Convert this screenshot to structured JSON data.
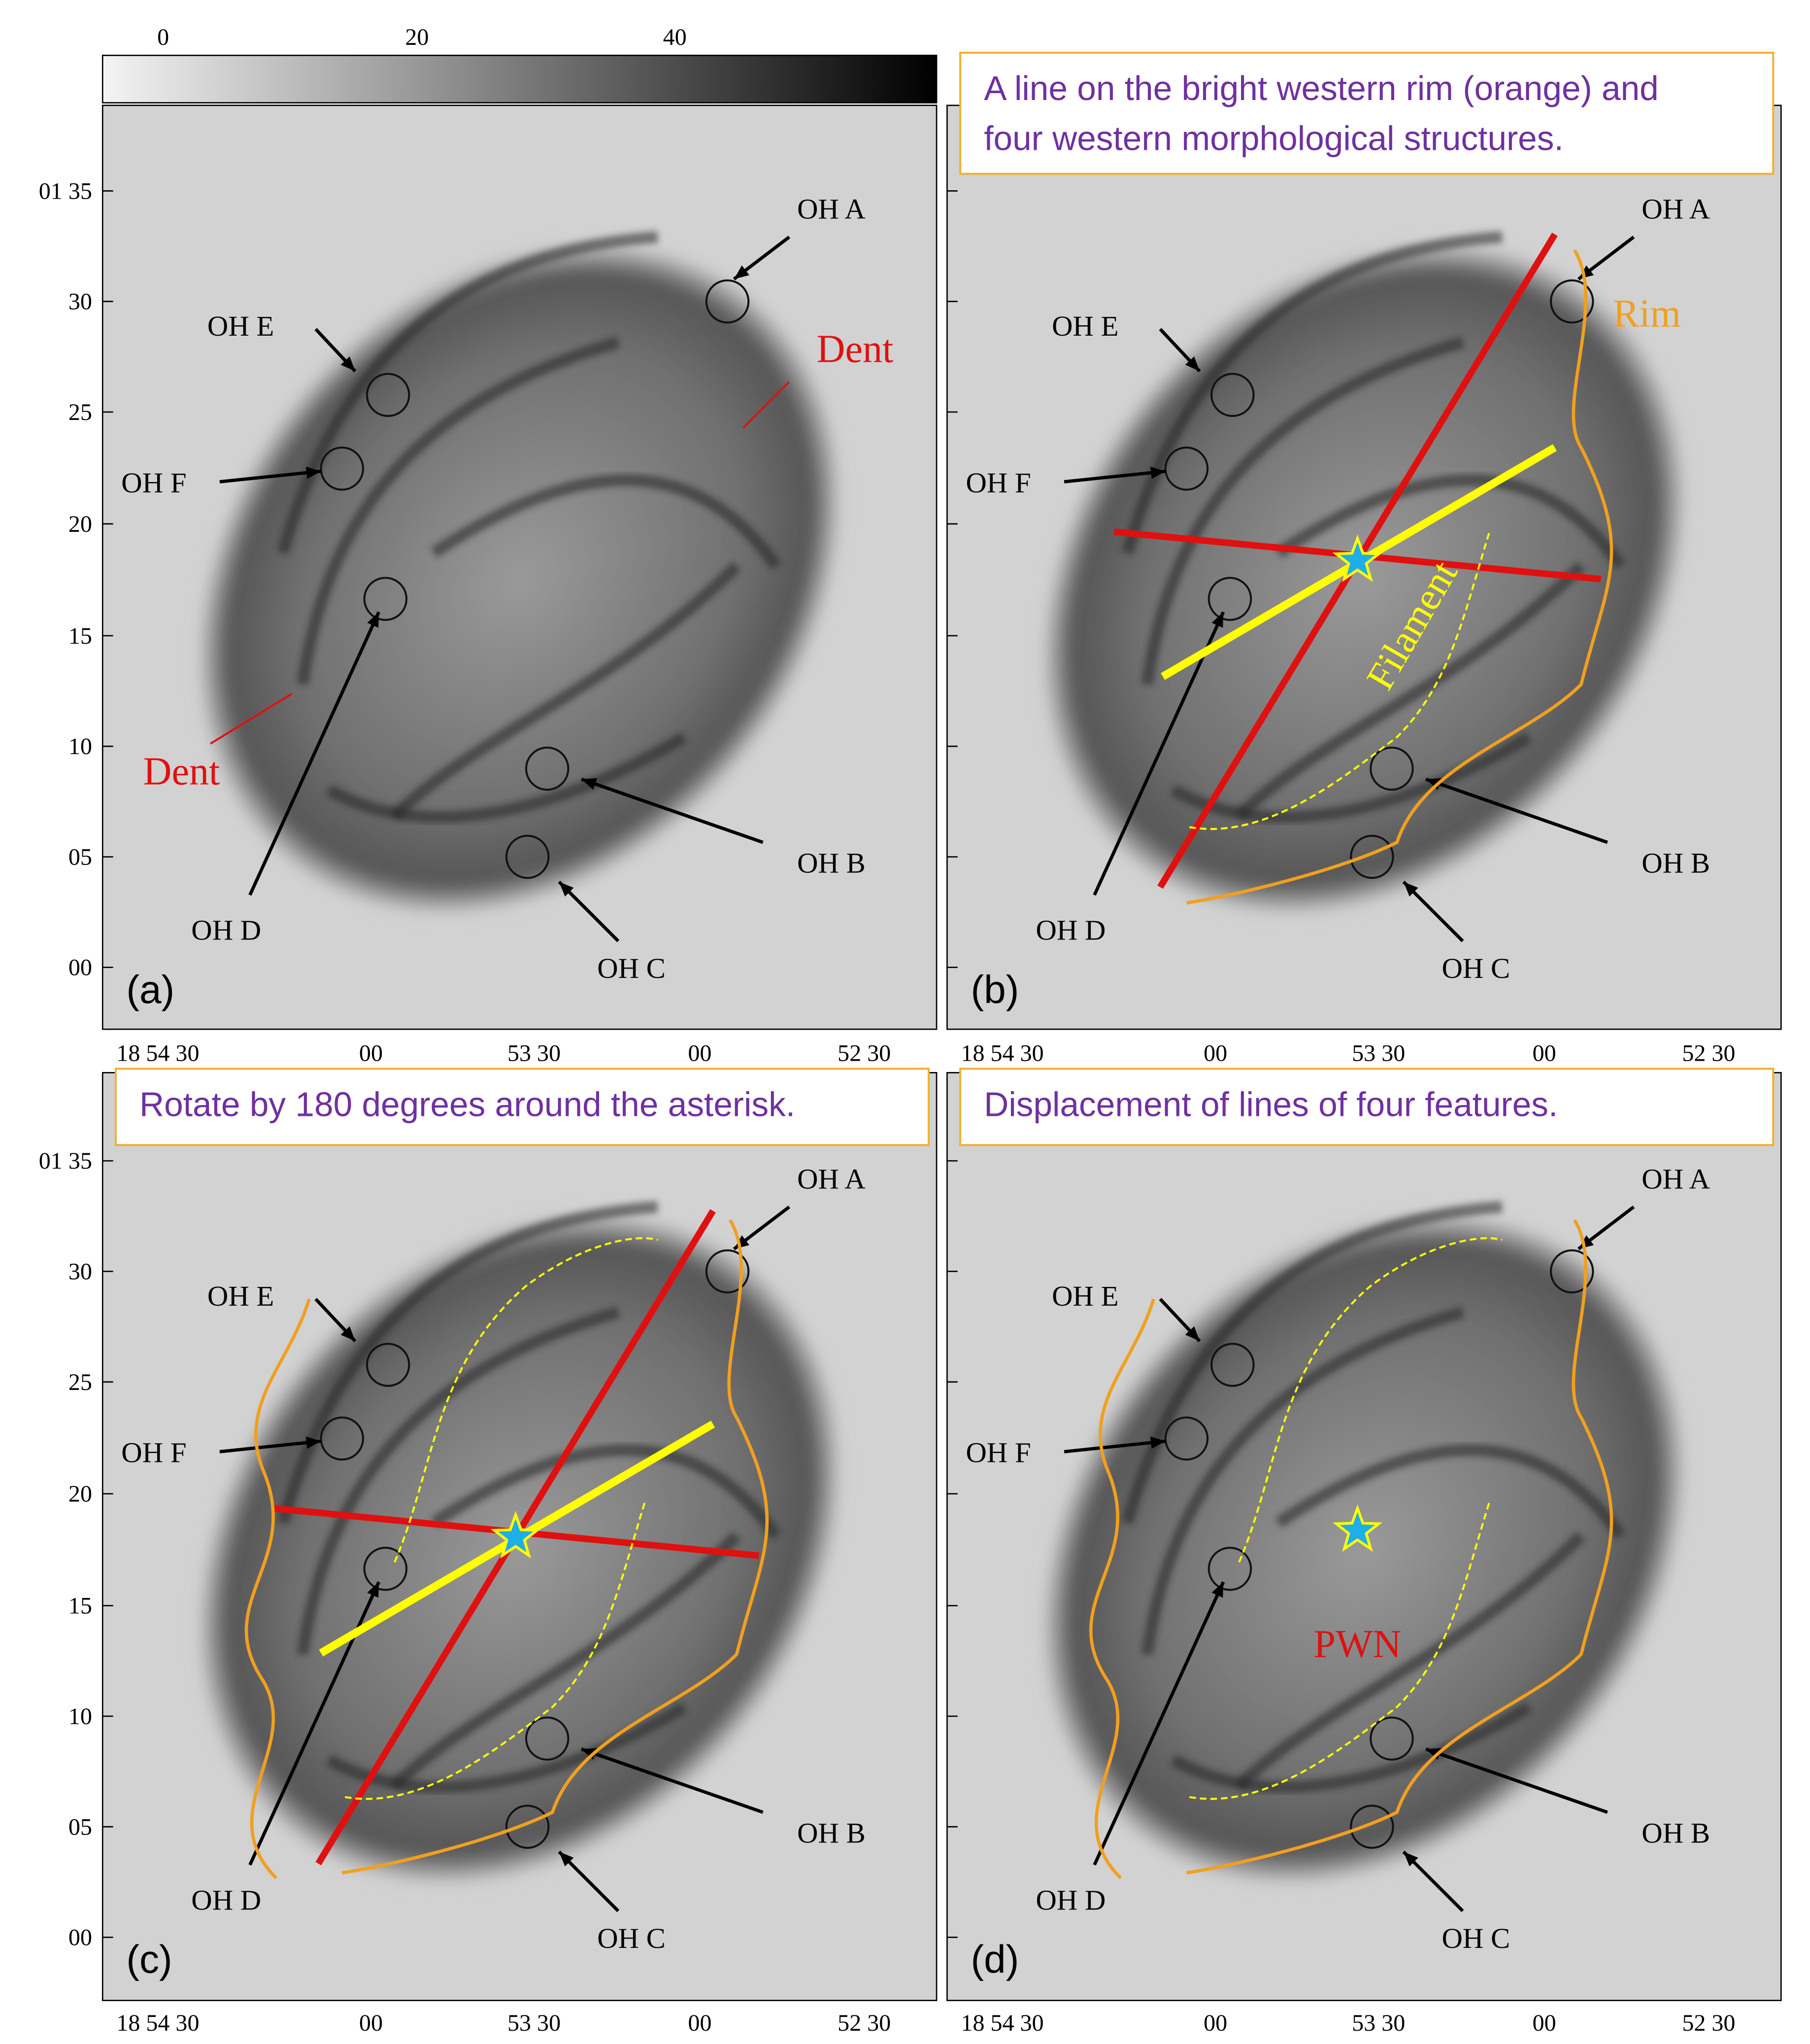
{
  "colorbar": {
    "ticks": [
      "0",
      "20",
      "40"
    ]
  },
  "y_axis_labels": [
    "01 35",
    "30",
    "25",
    "20",
    "15",
    "10",
    "05",
    "00"
  ],
  "x_axis_labels": [
    "18 54 30",
    "00",
    "53 30",
    "00",
    "52 30"
  ],
  "oh_labels": [
    "OH A",
    "OH B",
    "OH C",
    "OH D",
    "OH E",
    "OH F"
  ],
  "panels": [
    {
      "label": "(a)",
      "annotations": [
        "Dent",
        "Dent"
      ]
    },
    {
      "label": "(b)",
      "caption": [
        "A line on the bright western rim (orange) and",
        "four western morphological structures."
      ],
      "annotations": [
        "Rim",
        "Filament"
      ]
    },
    {
      "label": "(c)",
      "caption": [
        "Rotate by 180 degrees around the asterisk."
      ]
    },
    {
      "label": "(d)",
      "caption": [
        "Displacement of lines of four features."
      ],
      "annotations": [
        "PWN"
      ]
    }
  ]
}
